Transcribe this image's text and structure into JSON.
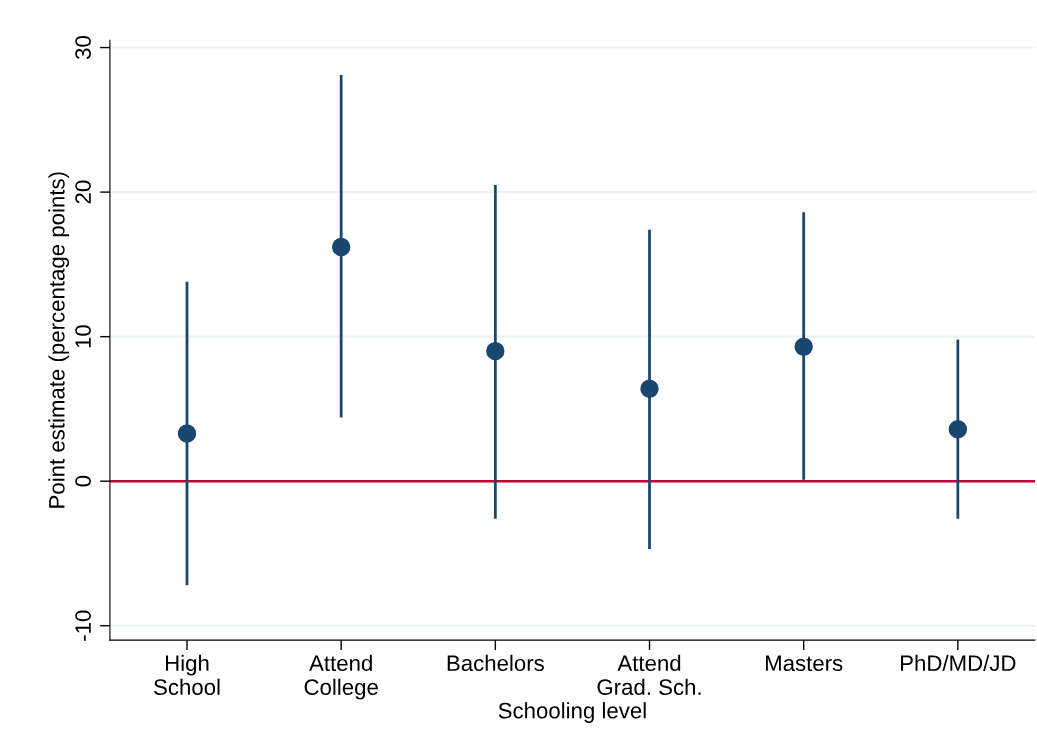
{
  "chart_data": {
    "type": "scatter",
    "xlabel": "Schooling level",
    "ylabel": "Point estimate (percentage points)",
    "categories": [
      "High\nSchool",
      "Attend\nCollege",
      "Bachelors",
      "Attend\nGrad. Sch.",
      "Masters",
      "PhD/MD/JD"
    ],
    "series": [
      {
        "color": "#1a476f",
        "values": [
          3.3,
          16.2,
          9.0,
          6.4,
          9.3,
          3.6
        ],
        "errors": [
          [
            -7.2,
            13.8
          ],
          [
            4.4,
            28.1
          ],
          [
            -2.6,
            20.5
          ],
          [
            -4.7,
            17.4
          ],
          [
            0.1,
            18.6
          ],
          [
            -2.6,
            9.8
          ]
        ]
      }
    ],
    "ylim": [
      -11,
      30.5
    ],
    "yticks": [
      -10,
      0,
      10,
      20,
      30
    ],
    "grid": "y",
    "marker": "circle",
    "ref_lines": [
      {
        "axis": "y",
        "value": 0,
        "color": "#c10534"
      }
    ]
  }
}
